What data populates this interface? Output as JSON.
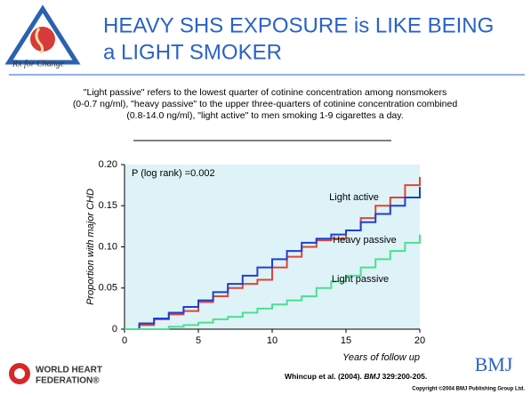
{
  "header": {
    "title_lines": [
      "HEAVY SHS EXPOSURE is LIKE BEING",
      "a LIGHT SMOKER"
    ],
    "logo_text": "Rx for Change"
  },
  "description_lines": [
    "\"Light passive\" refers to the lowest quarter of cotinine concentration among nonsmokers",
    "(0-0.7 ng/ml), \"heavy passive\" to the upper three-quarters of cotinine concentration combined",
    "(0.8-14.0 ng/ml), \"light active\" to men smoking 1-9 cigarettes a day."
  ],
  "chart_data": {
    "type": "step",
    "xlabel": "Years of follow up",
    "ylabel": "Proportion with major CHD",
    "annotation": "P (log rank) =0.002",
    "x": [
      0,
      1,
      2,
      3,
      4,
      5,
      6,
      7,
      8,
      9,
      10,
      11,
      12,
      13,
      14,
      15,
      16,
      17,
      18,
      19,
      20
    ],
    "series": [
      {
        "name": "Light active",
        "color": "#e0443a",
        "values": [
          0,
          0.005,
          0.012,
          0.018,
          0.022,
          0.033,
          0.04,
          0.05,
          0.055,
          0.06,
          0.075,
          0.088,
          0.1,
          0.108,
          0.11,
          0.12,
          0.135,
          0.15,
          0.16,
          0.175,
          0.185
        ]
      },
      {
        "name": "Heavy passive",
        "color": "#1f3fd0",
        "values": [
          0,
          0.007,
          0.013,
          0.02,
          0.027,
          0.035,
          0.045,
          0.055,
          0.065,
          0.075,
          0.085,
          0.095,
          0.105,
          0.11,
          0.115,
          0.12,
          0.13,
          0.14,
          0.15,
          0.16,
          0.173
        ]
      },
      {
        "name": "Light passive",
        "color": "#4ddf90",
        "values": [
          0,
          0,
          0,
          0.003,
          0.005,
          0.008,
          0.012,
          0.015,
          0.02,
          0.025,
          0.03,
          0.035,
          0.04,
          0.05,
          0.058,
          0.065,
          0.075,
          0.085,
          0.095,
          0.105,
          0.115
        ]
      }
    ],
    "xlim": [
      0,
      20
    ],
    "xticks": [
      0,
      5,
      10,
      15,
      20
    ],
    "ylim": [
      0,
      0.2
    ],
    "yticks": [
      0,
      0.05,
      {
        "value": 0.1,
        "label": "0.10"
      },
      0.15,
      {
        "value": 0.2,
        "label": "0.20"
      }
    ],
    "background": "#def3f8"
  },
  "footer": {
    "org_lines": [
      "WORLD HEART",
      "FEDERATION®"
    ],
    "citation": "Whincup et al. (2004).",
    "journal": "BMJ",
    "reference": "329:200-205.",
    "brand": "BMJ",
    "copyright": "Copyright ©2004 BMJ Publishing Group Ltd."
  }
}
